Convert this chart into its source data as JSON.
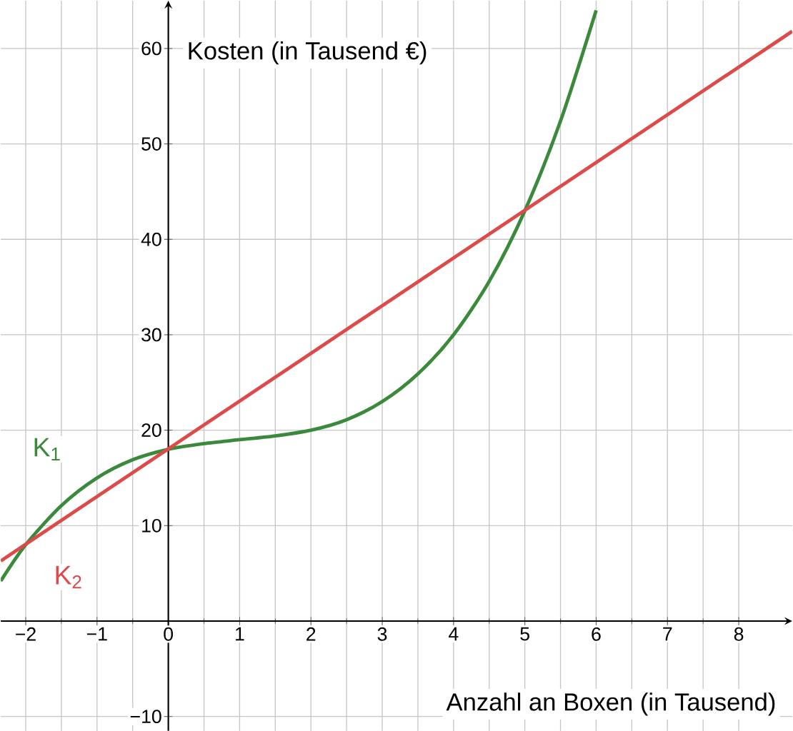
{
  "chart_data": {
    "type": "line",
    "xlabel": "Anzahl an Boxen (in Tausend)",
    "ylabel": "Kosten (in Tausend €)",
    "xlim": [
      -2.35,
      8.75
    ],
    "ylim": [
      -11.5,
      65
    ],
    "xticks": [
      {
        "value": -2,
        "label": "−2"
      },
      {
        "value": -1,
        "label": "−1"
      },
      0,
      1,
      2,
      3,
      4,
      5,
      6,
      7,
      8
    ],
    "yticks": [
      {
        "value": -10,
        "label": "−10"
      },
      10,
      20,
      30,
      40,
      50,
      60
    ],
    "grid": true,
    "legend": false,
    "marker": "none",
    "line_style": "solid",
    "series": [
      {
        "name": "K$_{1}$",
        "color": "#3b8a3b",
        "x": [
          -2.35,
          -2,
          -1.5,
          -1,
          -0.5,
          0,
          0.5,
          1,
          1.5,
          2,
          2.5,
          3,
          3.5,
          4,
          4.5,
          5,
          5.5,
          6
        ],
        "values": [
          4.2,
          8.0,
          12.1,
          15.0,
          16.9,
          18,
          18.6,
          19,
          19.4,
          20,
          21.1,
          23,
          25.9,
          30,
          35.6,
          43,
          52.4,
          64
        ]
      },
      {
        "name": "K$_{2}$",
        "color": "#dc4a4a",
        "x": [
          -2.35,
          8.75
        ],
        "values": [
          6.3,
          61.8
        ]
      }
    ]
  }
}
